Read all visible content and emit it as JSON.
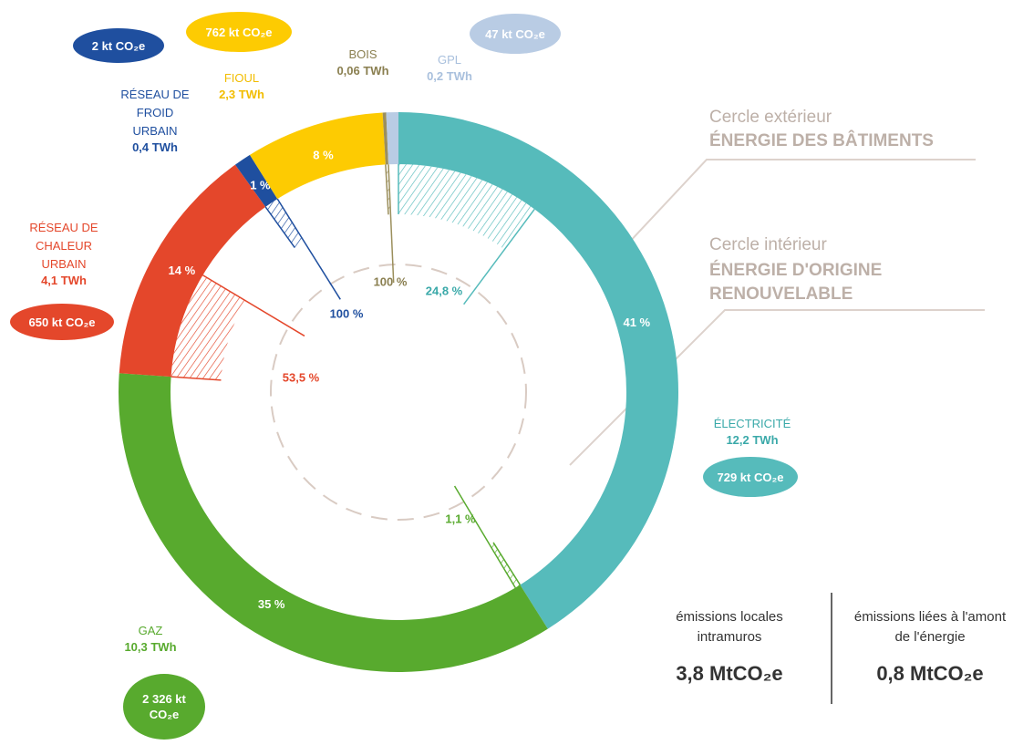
{
  "chart_data": {
    "type": "donut",
    "categories": [
      "ÉLECTRICITÉ",
      "GAZ",
      "RÉSEAU DE CHALEUR URBAIN",
      "RÉSEAU DE FROID URBAIN",
      "FIOUL",
      "BOIS",
      "GPL"
    ],
    "values": [
      41,
      35,
      14,
      1,
      8,
      0.2,
      0.7
    ],
    "value_labels": [
      "41 %",
      "35 %",
      "14 %",
      "1 %",
      "8 %",
      null,
      null
    ],
    "colors": [
      "#56bbbb",
      "#58aa2e",
      "#e4472b",
      "#1f4f9f",
      "#fdcb02",
      "#9b8f5c",
      "#b9cce4"
    ],
    "energy_labels": [
      "12,2 TWh",
      "10,3 TWh",
      "4,1 TWh",
      "0,4 TWh",
      "2,3 TWh",
      "0,06 TWh",
      "0,2 TWh"
    ],
    "emission_labels": [
      "729 kt CO₂e",
      "2 326 kt CO₂e",
      "650 kt CO₂e",
      "2 kt CO₂e",
      "762 kt CO₂e",
      null,
      "47 kt CO₂e"
    ],
    "renewable_share": [
      24.8,
      1.1,
      53.5,
      100,
      null,
      100,
      null
    ],
    "renewable_labels": [
      "24,8 %",
      "1,1 %",
      "53,5 %",
      "100 %",
      null,
      "100 %",
      null
    ],
    "legend": {
      "outer": {
        "caption": "Cercle extérieur",
        "title": "ÉNERGIE DES BÂTIMENTS"
      },
      "inner": {
        "caption": "Cercle intérieur",
        "title": "ÉNERGIE D'ORIGINE RENOUVELABLE"
      }
    },
    "totals": [
      {
        "label": "émissions locales intramuros",
        "value_label": "3,8 MtCO₂e"
      },
      {
        "label": "émissions liées à l'amont de l'énergie",
        "value_label": "0,8 MtCO₂e"
      }
    ]
  }
}
